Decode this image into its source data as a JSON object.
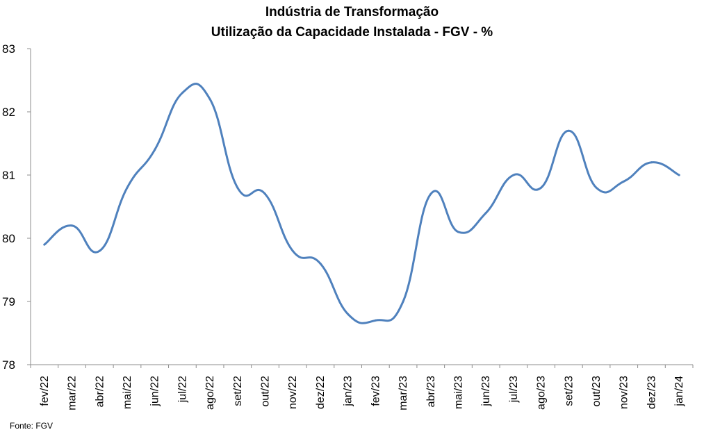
{
  "chart_data": {
    "type": "line",
    "title": "Indústria de Transformação",
    "subtitle": "Utilização da Capacidade Instalada - FGV - %",
    "categories": [
      "fev/22",
      "mar/22",
      "abr/22",
      "mai/22",
      "jun/22",
      "jul/22",
      "ago/22",
      "set/22",
      "out/22",
      "nov/22",
      "dez/22",
      "jan/23",
      "fev/23",
      "mar/23",
      "abr/23",
      "mai/23",
      "jun/23",
      "jul/23",
      "ago/23",
      "set/23",
      "out/23",
      "nov/23",
      "dez/23",
      "jan/24"
    ],
    "series": [
      {
        "values": [
          79.9,
          80.2,
          79.8,
          80.8,
          81.4,
          82.3,
          82.2,
          80.8,
          80.7,
          79.8,
          79.6,
          78.8,
          78.7,
          79.0,
          80.7,
          80.1,
          80.4,
          81.0,
          80.8,
          81.7,
          80.8,
          80.9,
          81.2,
          81.0
        ],
        "color": "#4f81bd"
      }
    ],
    "ylim": [
      78,
      83
    ],
    "yticks": [
      "78",
      "79",
      "80",
      "81",
      "82",
      "83"
    ],
    "xlabel": "",
    "ylabel": "",
    "grid": false,
    "legend": "none"
  },
  "source": "Fonte: FGV"
}
